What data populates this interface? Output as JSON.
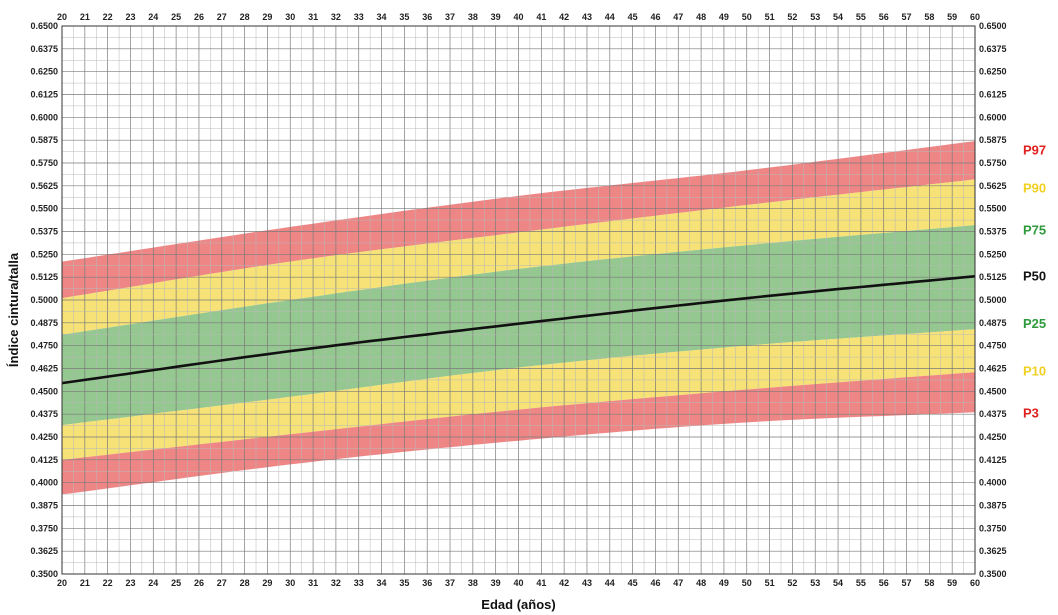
{
  "chart_data": {
    "type": "area",
    "xlabel": "Edad (años)",
    "ylabel": "Índice cintura/talla",
    "xlim": [
      20,
      60
    ],
    "ylim": [
      0.35,
      0.65
    ],
    "x_major_step": 1,
    "x_minor_step": 0.5,
    "y_major_step": 0.0125,
    "y_minor_step": 0.00625,
    "grid": true,
    "x_ticks_top_and_bottom": true,
    "y_ticks_left_and_right": true,
    "x": [
      20,
      30,
      40,
      50,
      60
    ],
    "series": [
      {
        "name": "P97",
        "color": "#e02020",
        "values": [
          0.521,
          0.54,
          0.557,
          0.571,
          0.587
        ]
      },
      {
        "name": "P90",
        "color": "#f2d11a",
        "values": [
          0.501,
          0.521,
          0.537,
          0.552,
          0.566
        ]
      },
      {
        "name": "P75",
        "color": "#2e9a3c",
        "values": [
          0.481,
          0.5,
          0.517,
          0.53,
          0.541
        ]
      },
      {
        "name": "P50",
        "color": "#111111",
        "values": [
          0.4545,
          0.472,
          0.487,
          0.501,
          0.513
        ]
      },
      {
        "name": "P25",
        "color": "#2e9a3c",
        "values": [
          0.4315,
          0.447,
          0.463,
          0.475,
          0.484
        ]
      },
      {
        "name": "P10",
        "color": "#f2d11a",
        "values": [
          0.4125,
          0.4265,
          0.44,
          0.451,
          0.4605
        ]
      },
      {
        "name": "P3",
        "color": "#e02020",
        "values": [
          0.3935,
          0.41,
          0.423,
          0.433,
          0.4385
        ]
      }
    ],
    "bands": [
      {
        "from": "P90",
        "to": "P97",
        "color": "#ee8080"
      },
      {
        "from": "P75",
        "to": "P90",
        "color": "#f5e070"
      },
      {
        "from": "P25",
        "to": "P75",
        "color": "#8fc48a"
      },
      {
        "from": "P10",
        "to": "P25",
        "color": "#f5e070"
      },
      {
        "from": "P3",
        "to": "P10",
        "color": "#ee8080"
      }
    ]
  }
}
